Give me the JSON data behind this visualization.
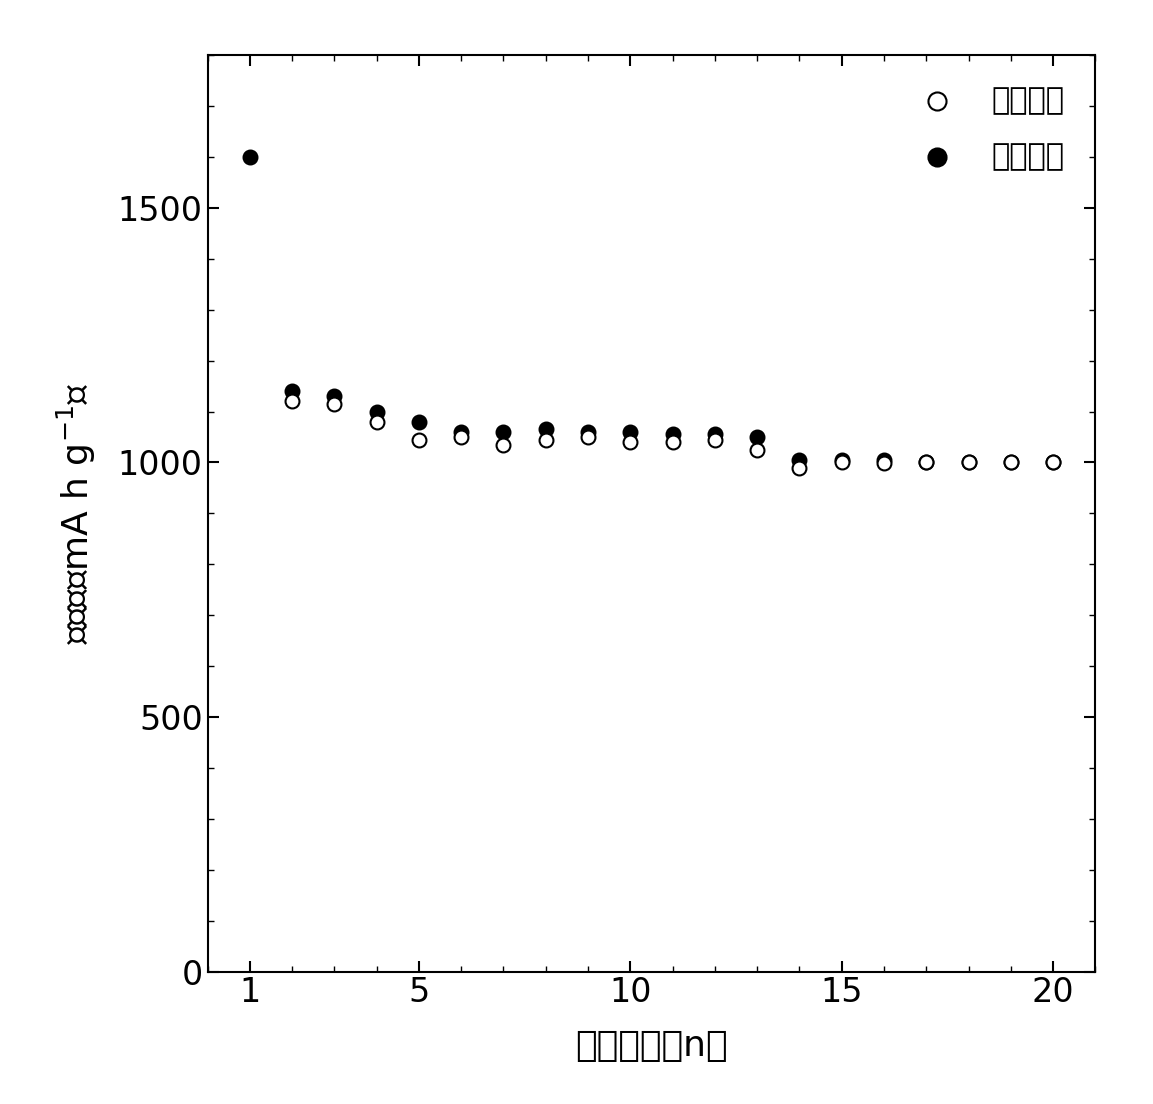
{
  "charge_x": [
    2,
    3,
    4,
    5,
    6,
    7,
    8,
    9,
    10,
    11,
    12,
    13,
    14,
    15,
    16,
    17,
    18,
    19,
    20
  ],
  "charge_y": [
    1120,
    1115,
    1080,
    1045,
    1050,
    1035,
    1045,
    1050,
    1040,
    1040,
    1045,
    1025,
    990,
    1000,
    998,
    1000,
    1000,
    1000,
    1000
  ],
  "discharge_x": [
    1,
    2,
    3,
    4,
    5,
    6,
    7,
    8,
    9,
    10,
    11,
    12,
    13,
    14,
    15,
    16,
    17,
    18,
    19,
    20
  ],
  "discharge_y": [
    1600,
    1140,
    1130,
    1100,
    1080,
    1060,
    1060,
    1065,
    1060,
    1060,
    1055,
    1055,
    1050,
    1005,
    1005,
    1005,
    1000,
    1000,
    1000,
    1000
  ],
  "xlabel": "循环圈数（n）",
  "legend_charge": "充电容量",
  "legend_discharge": "放电容量",
  "xlim": [
    0,
    21
  ],
  "ylim": [
    0,
    1800
  ],
  "xticks": [
    1,
    5,
    10,
    15,
    20
  ],
  "yticks": [
    0,
    500,
    1000,
    1500
  ],
  "marker_size": 100,
  "linewidth": 1.5,
  "background_color": "#ffffff",
  "axis_color": "#000000"
}
